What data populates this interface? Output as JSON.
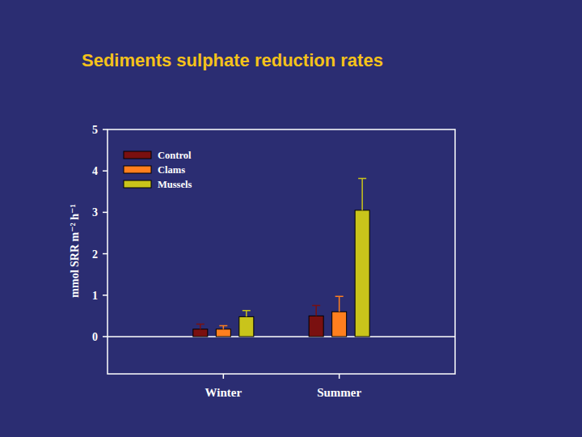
{
  "chart_data": {
    "type": "bar",
    "title": "Sediments sulphate reduction rates",
    "y_label": "mmol SRR m⁻² h⁻¹",
    "categories": [
      "Winter",
      "Summer"
    ],
    "series": [
      {
        "name": "Control",
        "color": "#7a1010",
        "values": [
          0.18,
          0.5
        ],
        "errors": [
          0.12,
          0.25
        ]
      },
      {
        "name": "Clams",
        "color": "#ff7f1e",
        "values": [
          0.18,
          0.6
        ],
        "errors": [
          0.08,
          0.37
        ]
      },
      {
        "name": "Mussels",
        "color": "#c9c41b",
        "values": [
          0.48,
          3.05
        ],
        "errors": [
          0.15,
          0.77
        ]
      }
    ],
    "ylim": [
      -0.9,
      5
    ],
    "yticks": [
      0,
      1,
      2,
      3,
      4,
      5
    ],
    "legend": "upper left",
    "grid": false
  }
}
